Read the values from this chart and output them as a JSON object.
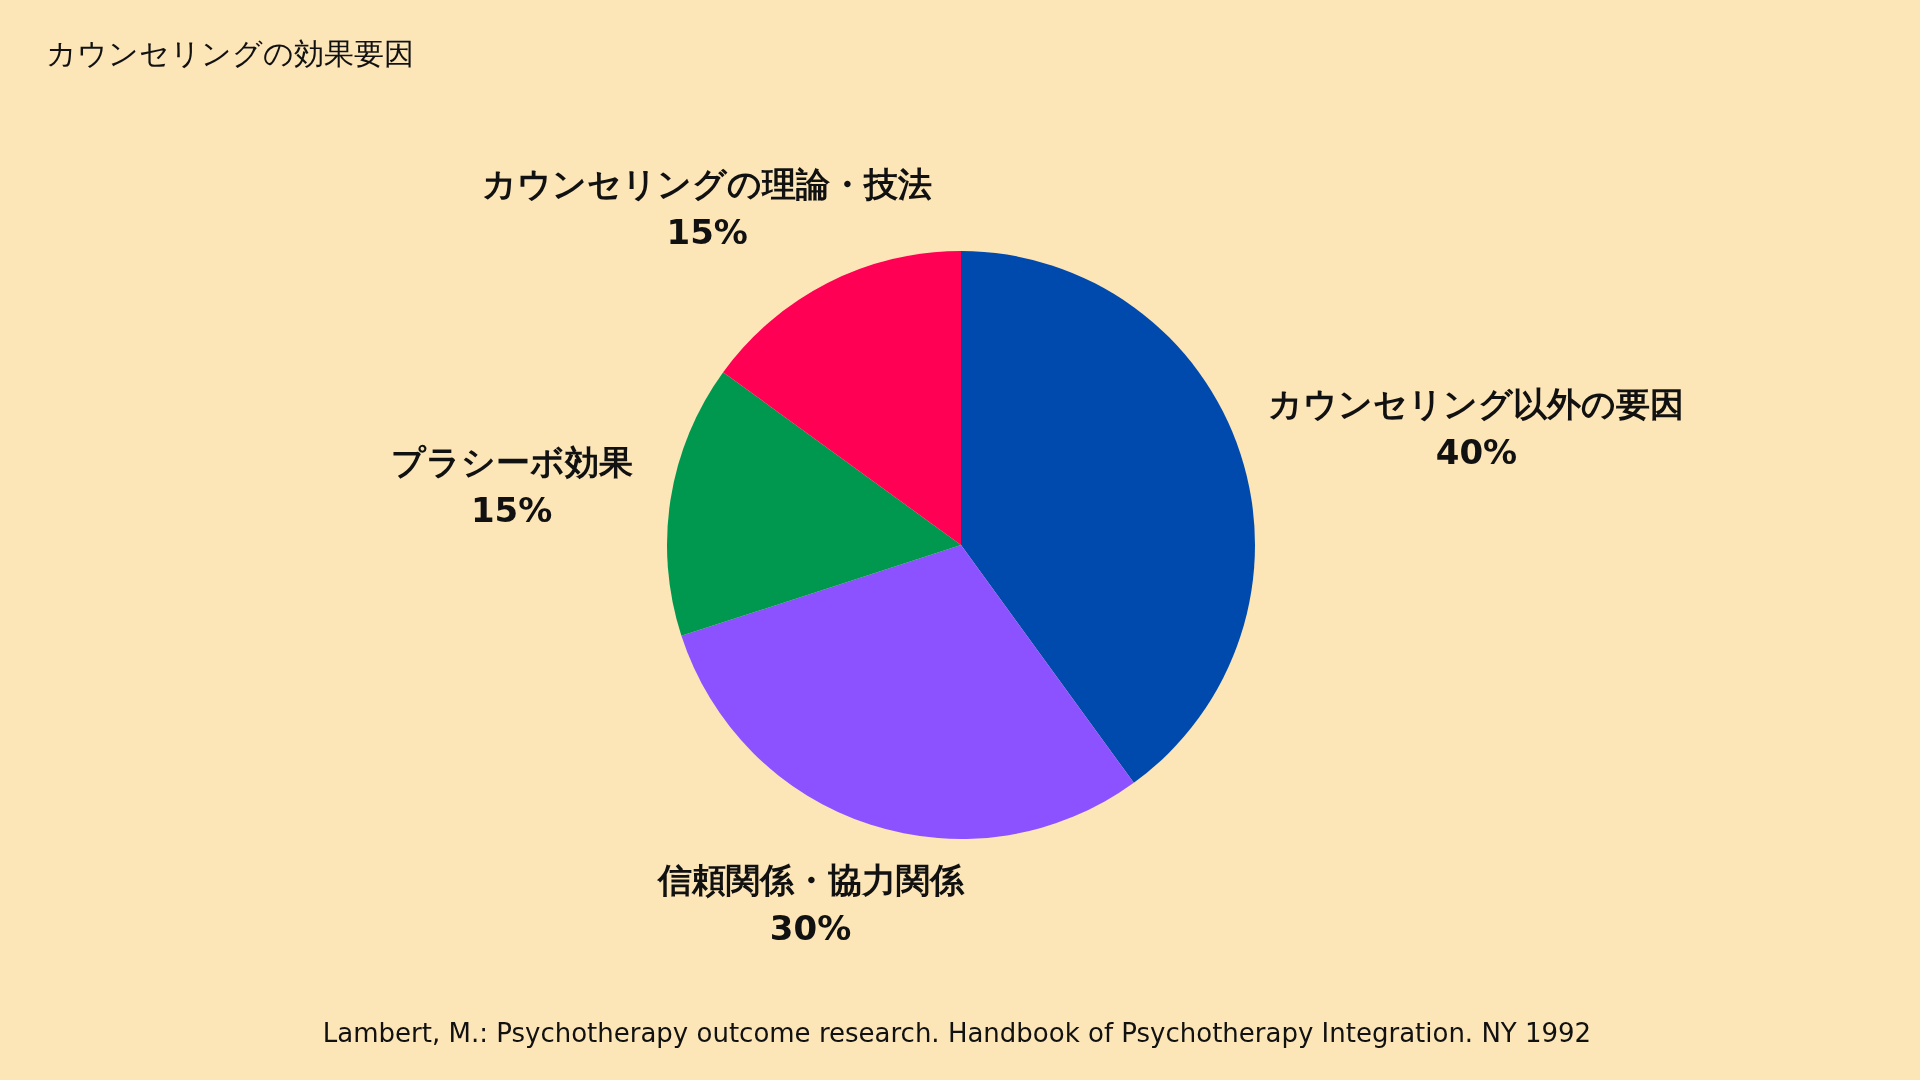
{
  "chart_data": {
    "type": "pie",
    "title": "カウンセリングの効果要因",
    "categories": [
      "カウンセリング以外の要因",
      "信頼関係・協力関係",
      "プラシーボ効果",
      "カウンセリングの理論・技法"
    ],
    "values": [
      40,
      30,
      15,
      15
    ],
    "colors": [
      "#004aad",
      "#8c52ff",
      "#00974f",
      "#ff0055"
    ],
    "value_labels": [
      "40%",
      "30%",
      "15%",
      "15%"
    ],
    "annotations": [
      "Lambert, M.: Psychotherapy outcome research. Handbook of Psychotherapy Integration. NY 1992"
    ]
  }
}
